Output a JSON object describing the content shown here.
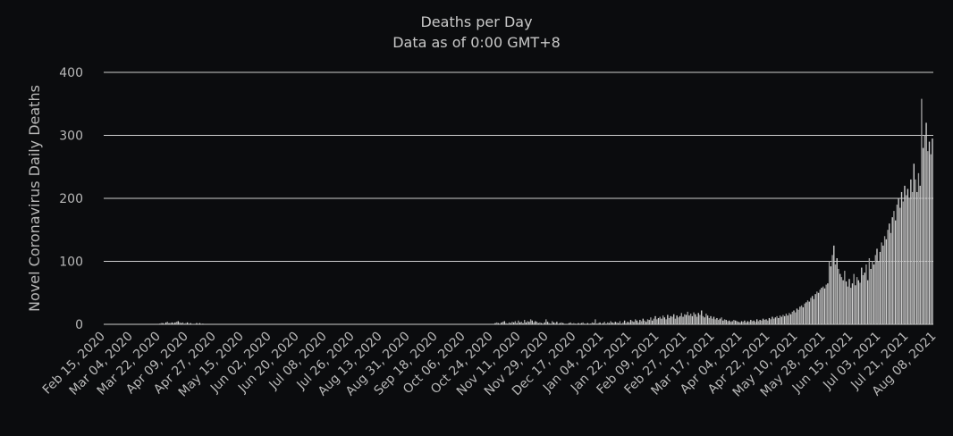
{
  "chart_data": {
    "type": "bar",
    "title": "Deaths per Day",
    "subtitle": "Data as of 0:00 GMT+8",
    "xlabel": "",
    "ylabel": "Novel Coronavirus Daily Deaths",
    "ylim": [
      0,
      400
    ],
    "yticks": [
      0,
      100,
      200,
      300,
      400
    ],
    "grid": true,
    "legend": "none",
    "start_date": "2020-02-15",
    "end_date": "2021-08-20",
    "tick_labels": [
      "Feb 15, 2020",
      "Mar 04, 2020",
      "Mar 22, 2020",
      "Apr 09, 2020",
      "Apr 27, 2020",
      "May 15, 2020",
      "Jun 02, 2020",
      "Jun 20, 2020",
      "Jul 08, 2020",
      "Jul 26, 2020",
      "Aug 13, 2020",
      "Aug 31, 2020",
      "Sep 18, 2020",
      "Oct 06, 2020",
      "Oct 24, 2020",
      "Nov 11, 2020",
      "Nov 29, 2020",
      "Dec 17, 2020",
      "Jan 04, 2021",
      "Jan 22, 2021",
      "Feb 09, 2021",
      "Feb 27, 2021",
      "Mar 17, 2021",
      "Apr 04, 2021",
      "Apr 22, 2021",
      "May 10, 2021",
      "May 28, 2021",
      "Jun 15, 2021",
      "Jul 03, 2021",
      "Jul 21, 2021",
      "Aug 08, 2021"
    ],
    "series": [
      {
        "values": [
          0,
          0,
          0,
          0,
          0,
          0,
          0,
          0,
          0,
          0,
          0,
          0,
          0,
          0,
          0,
          0,
          0,
          0,
          0,
          0,
          0,
          0,
          0,
          0,
          0,
          0,
          0,
          0,
          0,
          0,
          0,
          0,
          0,
          0,
          0,
          1,
          1,
          2,
          2,
          1,
          3,
          4,
          2,
          2,
          3,
          2,
          3,
          4,
          5,
          3,
          2,
          3,
          1,
          2,
          3,
          1,
          2,
          1,
          0,
          1,
          2,
          1,
          2,
          0,
          1,
          0,
          0,
          1,
          0,
          0,
          0,
          0,
          0,
          0,
          0,
          0,
          0,
          0,
          0,
          0,
          0,
          0,
          0,
          0,
          0,
          0,
          0,
          0,
          0,
          0,
          0,
          0,
          0,
          0,
          0,
          0,
          0,
          0,
          0,
          0,
          0,
          0,
          0,
          0,
          0,
          0,
          0,
          0,
          0,
          0,
          0,
          0,
          0,
          0,
          0,
          0,
          0,
          0,
          0,
          0,
          0,
          0,
          0,
          0,
          0,
          0,
          0,
          0,
          0,
          0,
          0,
          0,
          0,
          0,
          0,
          0,
          0,
          0,
          0,
          0,
          0,
          0,
          0,
          0,
          0,
          0,
          0,
          0,
          0,
          0,
          0,
          0,
          0,
          0,
          0,
          0,
          0,
          0,
          0,
          0,
          0,
          0,
          0,
          0,
          0,
          0,
          0,
          0,
          0,
          0,
          0,
          0,
          0,
          0,
          0,
          0,
          0,
          0,
          0,
          0,
          0,
          0,
          0,
          0,
          0,
          0,
          0,
          0,
          0,
          0,
          0,
          0,
          0,
          0,
          0,
          0,
          0,
          0,
          0,
          0,
          0,
          0,
          0,
          0,
          0,
          0,
          0,
          0,
          0,
          0,
          0,
          0,
          0,
          0,
          0,
          0,
          0,
          0,
          0,
          0,
          0,
          0,
          0,
          0,
          0,
          0,
          0,
          0,
          0,
          0,
          0,
          0,
          0,
          0,
          0,
          0,
          0,
          0,
          0,
          0,
          0,
          0,
          0,
          0,
          0,
          0,
          0,
          0,
          0,
          0,
          0,
          0,
          0,
          1,
          2,
          3,
          2,
          1,
          3,
          4,
          5,
          2,
          1,
          3,
          2,
          4,
          3,
          5,
          2,
          6,
          3,
          4,
          2,
          7,
          3,
          5,
          4,
          8,
          6,
          3,
          5,
          4,
          2,
          3,
          2,
          1,
          3,
          8,
          4,
          2,
          1,
          5,
          3,
          2,
          4,
          1,
          2,
          3,
          2,
          1,
          0,
          1,
          2,
          3,
          1,
          2,
          1,
          0,
          2,
          1,
          2,
          3,
          1,
          0,
          2,
          1,
          1,
          3,
          2,
          8,
          1,
          2,
          3,
          1,
          2,
          4,
          1,
          3,
          2,
          5,
          3,
          2,
          4,
          3,
          2,
          5,
          1,
          3,
          6,
          2,
          4,
          3,
          7,
          5,
          4,
          8,
          6,
          3,
          7,
          5,
          9,
          6,
          4,
          8,
          7,
          11,
          6,
          9,
          13,
          8,
          10,
          12,
          9,
          14,
          11,
          8,
          15,
          10,
          13,
          12,
          16,
          9,
          14,
          11,
          13,
          18,
          12,
          16,
          15,
          20,
          14,
          17,
          13,
          19,
          16,
          12,
          18,
          15,
          22,
          13,
          11,
          17,
          14,
          10,
          13,
          9,
          12,
          8,
          10,
          7,
          9,
          11,
          6,
          8,
          7,
          5,
          6,
          4,
          5,
          7,
          6,
          5,
          4,
          3,
          5,
          4,
          6,
          3,
          5,
          4,
          7,
          5,
          6,
          4,
          8,
          5,
          7,
          6,
          9,
          7,
          8,
          6,
          10,
          8,
          12,
          9,
          11,
          13,
          10,
          14,
          12,
          15,
          13,
          17,
          14,
          18,
          16,
          20,
          22,
          19,
          25,
          23,
          28,
          30,
          27,
          33,
          35,
          38,
          36,
          42,
          45,
          40,
          48,
          52,
          50,
          55,
          58,
          60,
          57,
          63,
          65,
          100,
          92,
          110,
          125,
          95,
          105,
          88,
          80,
          75,
          70,
          85,
          68,
          60,
          72,
          58,
          65,
          80,
          62,
          75,
          70,
          66,
          90,
          78,
          82,
          95,
          70,
          105,
          88,
          100,
          95,
          110,
          120,
          100,
          115,
          130,
          125,
          140,
          135,
          150,
          160,
          145,
          170,
          180,
          165,
          190,
          200,
          185,
          210,
          195,
          220,
          205,
          215,
          200,
          230,
          210,
          255,
          230,
          210,
          240,
          220,
          358,
          280,
          300,
          320,
          275,
          290,
          270,
          295
        ]
      }
    ]
  }
}
